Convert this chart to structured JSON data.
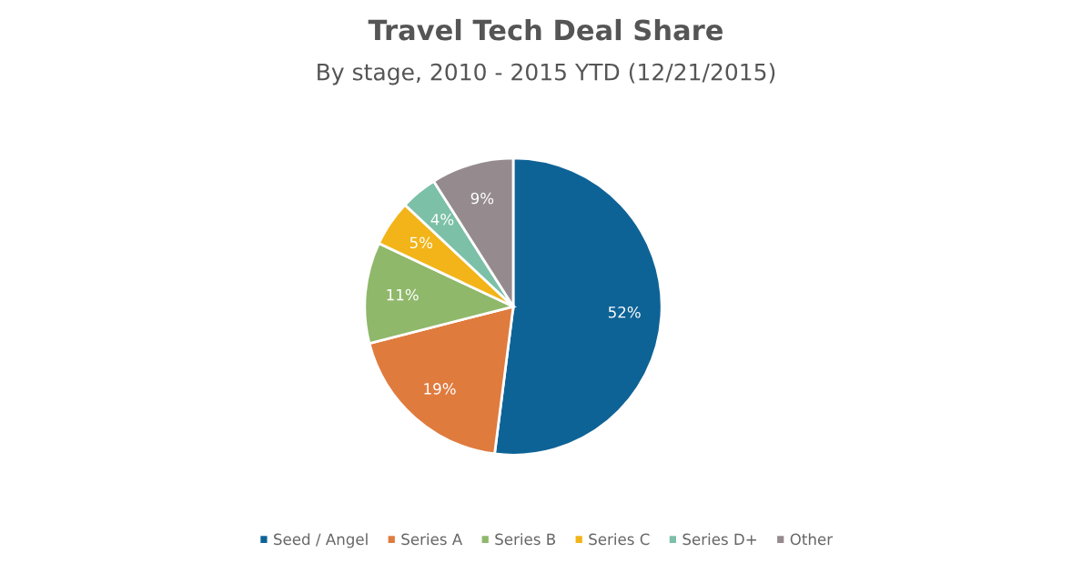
{
  "chart_data": {
    "type": "pie",
    "title": "Travel Tech Deal Share",
    "subtitle": "By stage, 2010 - 2015 YTD (12/21/2015)",
    "categories": [
      "Seed / Angel",
      "Series A",
      "Series B",
      "Series C",
      "Series D+",
      "Other"
    ],
    "values": [
      52,
      19,
      11,
      5,
      4,
      9
    ],
    "colors": [
      "#0e6396",
      "#e07b3e",
      "#8fb86a",
      "#f2b418",
      "#7cc0a8",
      "#958b8f"
    ],
    "value_labels": [
      "52%",
      "19%",
      "11%",
      "5%",
      "4%",
      "9%"
    ],
    "legend": "bottom"
  }
}
